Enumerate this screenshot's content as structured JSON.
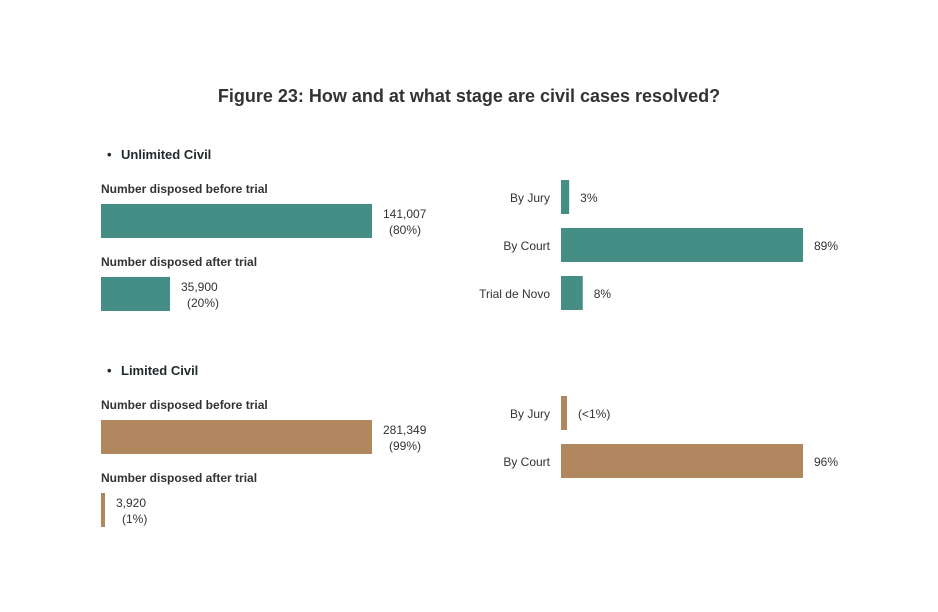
{
  "title": "Figure 23: How and at what stage are civil cases resolved?",
  "colors": {
    "unlimited": "#458E86",
    "limited": "#B0875E"
  },
  "chart_data": [
    {
      "type": "bar",
      "group": "Unlimited Civil",
      "categories": [
        "Number disposed before trial",
        "Number disposed after trial"
      ],
      "values": [
        141007,
        35900
      ],
      "value_labels": [
        "141,007",
        "35,900"
      ],
      "percent_labels": [
        "(80%)",
        "(20%)"
      ]
    },
    {
      "type": "bar",
      "group": "Unlimited Civil",
      "categories": [
        "By Jury",
        "By Court",
        "Trial de Novo"
      ],
      "values": [
        3,
        89,
        8
      ],
      "value_labels": [
        "3%",
        "89%",
        "8%"
      ]
    },
    {
      "type": "bar",
      "group": "Limited Civil",
      "categories": [
        "Number disposed before trial",
        "Number disposed after trial"
      ],
      "values": [
        281349,
        3920
      ],
      "value_labels": [
        "281,349",
        "3,920"
      ],
      "percent_labels": [
        "(99%)",
        "(1%)"
      ]
    },
    {
      "type": "bar",
      "group": "Limited Civil",
      "categories": [
        "By Jury",
        "By Court"
      ],
      "values": [
        0.5,
        96
      ],
      "value_labels": [
        "(<1%)",
        "96%"
      ]
    }
  ]
}
